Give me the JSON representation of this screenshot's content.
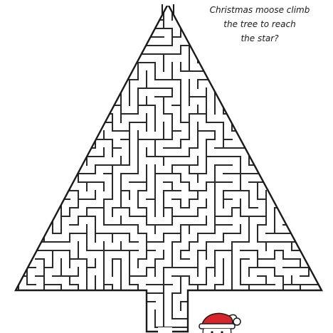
{
  "puzzle": {
    "question_lines": [
      "Christmas moose climb",
      "the tree to reach",
      "the star?"
    ]
  },
  "colors": {
    "ink": "#2a2a2a",
    "hat_red": "#d7262b",
    "hat_trim": "#ffffff",
    "background": "#ffffff"
  },
  "icons": {
    "goal": "star-top-of-tree",
    "character": "moose-with-santa-hat-icon"
  }
}
